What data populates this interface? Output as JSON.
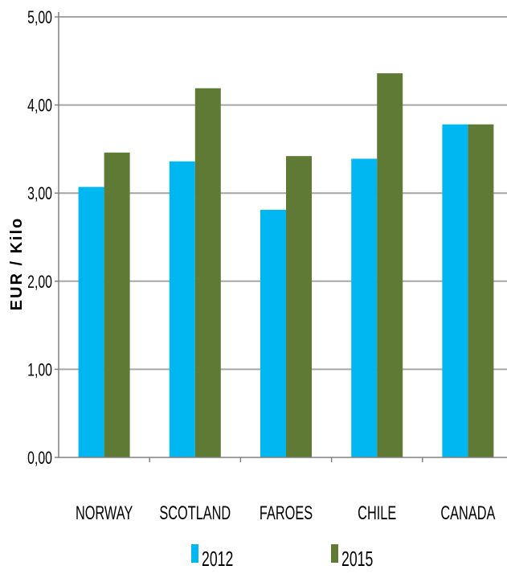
{
  "colors": {
    "series_2012": "#00b7f1",
    "series_2015": "#5f7a34",
    "gridline": "#a6a6a6",
    "axis": "#808080",
    "text": "#000000"
  },
  "chart_data": {
    "type": "bar",
    "title": "",
    "xlabel": "",
    "ylabel": "EUR / Kilo",
    "categories": [
      "NORWAY",
      "SCOTLAND",
      "FAROES",
      "CHILE",
      "CANADA"
    ],
    "series": [
      {
        "name": "2012",
        "values": [
          3.07,
          3.36,
          2.81,
          3.39,
          3.78
        ]
      },
      {
        "name": "2015",
        "values": [
          3.46,
          4.19,
          3.42,
          4.36,
          3.78
        ]
      }
    ],
    "ylim": [
      0,
      5
    ],
    "yticks": [
      "0,00",
      "1,00",
      "2,00",
      "3,00",
      "4,00",
      "5,00"
    ],
    "grid": true,
    "legend_position": "bottom"
  }
}
